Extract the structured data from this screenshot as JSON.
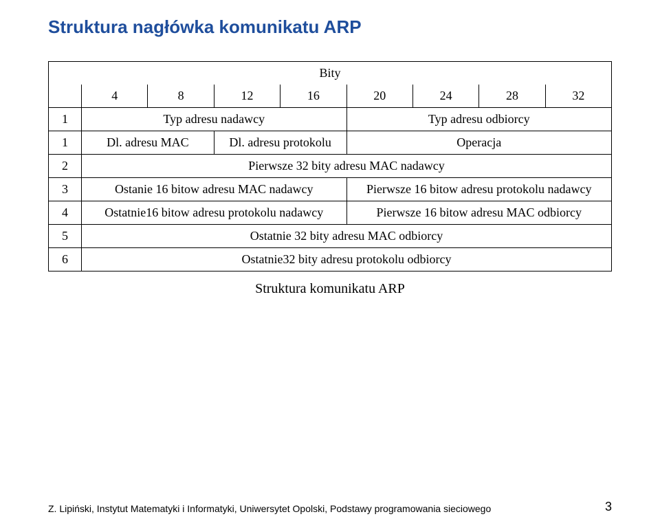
{
  "title": "Struktura nagłówka komunikatu ARP",
  "table": {
    "bity_label": "Bity",
    "bit_cols": [
      "4",
      "8",
      "12",
      "16",
      "20",
      "24",
      "28",
      "32"
    ],
    "rows": {
      "r1": {
        "num": "1",
        "left": "Typ adresu nadawcy",
        "right": "Typ adresu odbiorcy"
      },
      "r2": {
        "num": "1",
        "c1": "Dl. adresu MAC",
        "c2": "Dl. adresu  protokolu",
        "c3": "Operacja"
      },
      "r3": {
        "num": "2",
        "full": "Pierwsze 32 bity adresu MAC nadawcy"
      },
      "r4": {
        "num": "3",
        "left": "Ostanie 16 bitow adresu  MAC nadawcy",
        "right": "Pierwsze 16 bitow adresu  protokolu nadawcy"
      },
      "r5": {
        "num": "4",
        "left": "Ostatnie16 bitow adresu protokolu nadawcy",
        "right": "Pierwsze 16 bitow adresu  MAC odbiorcy"
      },
      "r6": {
        "num": "5",
        "full": "Ostatnie 32 bity adresu  MAC odbiorcy"
      },
      "r7": {
        "num": "6",
        "full": "Ostatnie32 bity adresu protokolu odbiorcy"
      }
    }
  },
  "caption": "Struktura komunikatu ARP",
  "footer_left": "Z. Lipiński, Instytut Matematyki i Informatyki, Uniwersytet Opolski, Podstawy programowania sieciowego",
  "footer_pagenum": "3",
  "colors": {
    "title": "#1f4e9c",
    "border": "#000000",
    "bg": "#ffffff"
  }
}
